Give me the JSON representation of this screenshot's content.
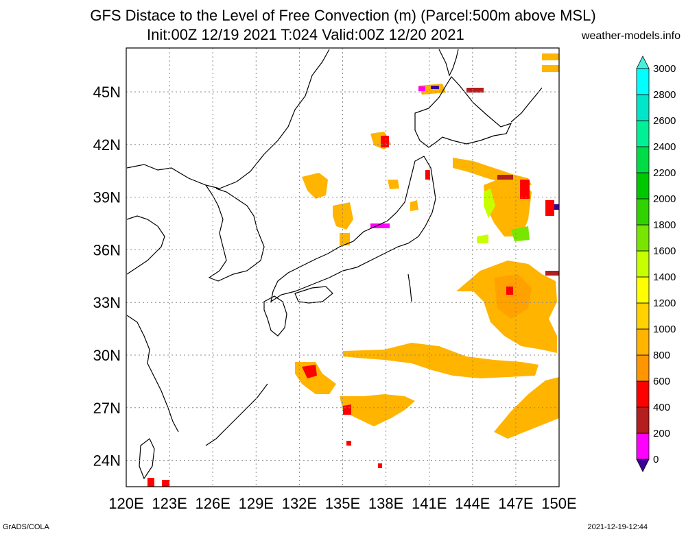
{
  "title": {
    "line1": "GFS Distace to the Level of Free Convection (m) (Parcel:500m above MSL)",
    "line2": "Init:00Z 12/19 2021 T:024 Valid:00Z 12/20 2021"
  },
  "site": "weather-models.info",
  "footer": {
    "left": "GrADS/COLA",
    "right": "2021-12-19-12:44"
  },
  "axes": {
    "lon_labels": [
      "120E",
      "123E",
      "126E",
      "129E",
      "132E",
      "135E",
      "138E",
      "141E",
      "144E",
      "147E",
      "150E"
    ],
    "lat_labels": [
      "45N",
      "42N",
      "39N",
      "36N",
      "33N",
      "30N",
      "27N",
      "24N"
    ],
    "lon_range": [
      120,
      150
    ],
    "lat_range": [
      22.5,
      47.5
    ],
    "grid": "dotted"
  },
  "colorbar": {
    "levels": [
      "0",
      "200",
      "400",
      "600",
      "800",
      "1000",
      "1200",
      "1400",
      "1600",
      "1800",
      "2000",
      "2200",
      "2400",
      "2600",
      "2800",
      "3000"
    ],
    "colors": [
      "#3c0096",
      "#ff00ff",
      "#b41e1e",
      "#ff0000",
      "#ff9600",
      "#ffb400",
      "#ffd200",
      "#ffff00",
      "#c8ff00",
      "#78e600",
      "#32d200",
      "#00c800",
      "#00dc46",
      "#00f096",
      "#00e6c8",
      "#00ffff",
      "#46f0dc"
    ]
  },
  "legend_colors": {
    "c600": "#ff9600",
    "c800": "#ffb400",
    "c1000": "#ffd200",
    "c1200": "#ffc800",
    "c400": "#ff0000",
    "c200": "#b41e1e",
    "c0": "#ff00ff",
    "cneg": "#3c0096",
    "c1600": "#c8ff00",
    "c1800": "#78e600"
  }
}
